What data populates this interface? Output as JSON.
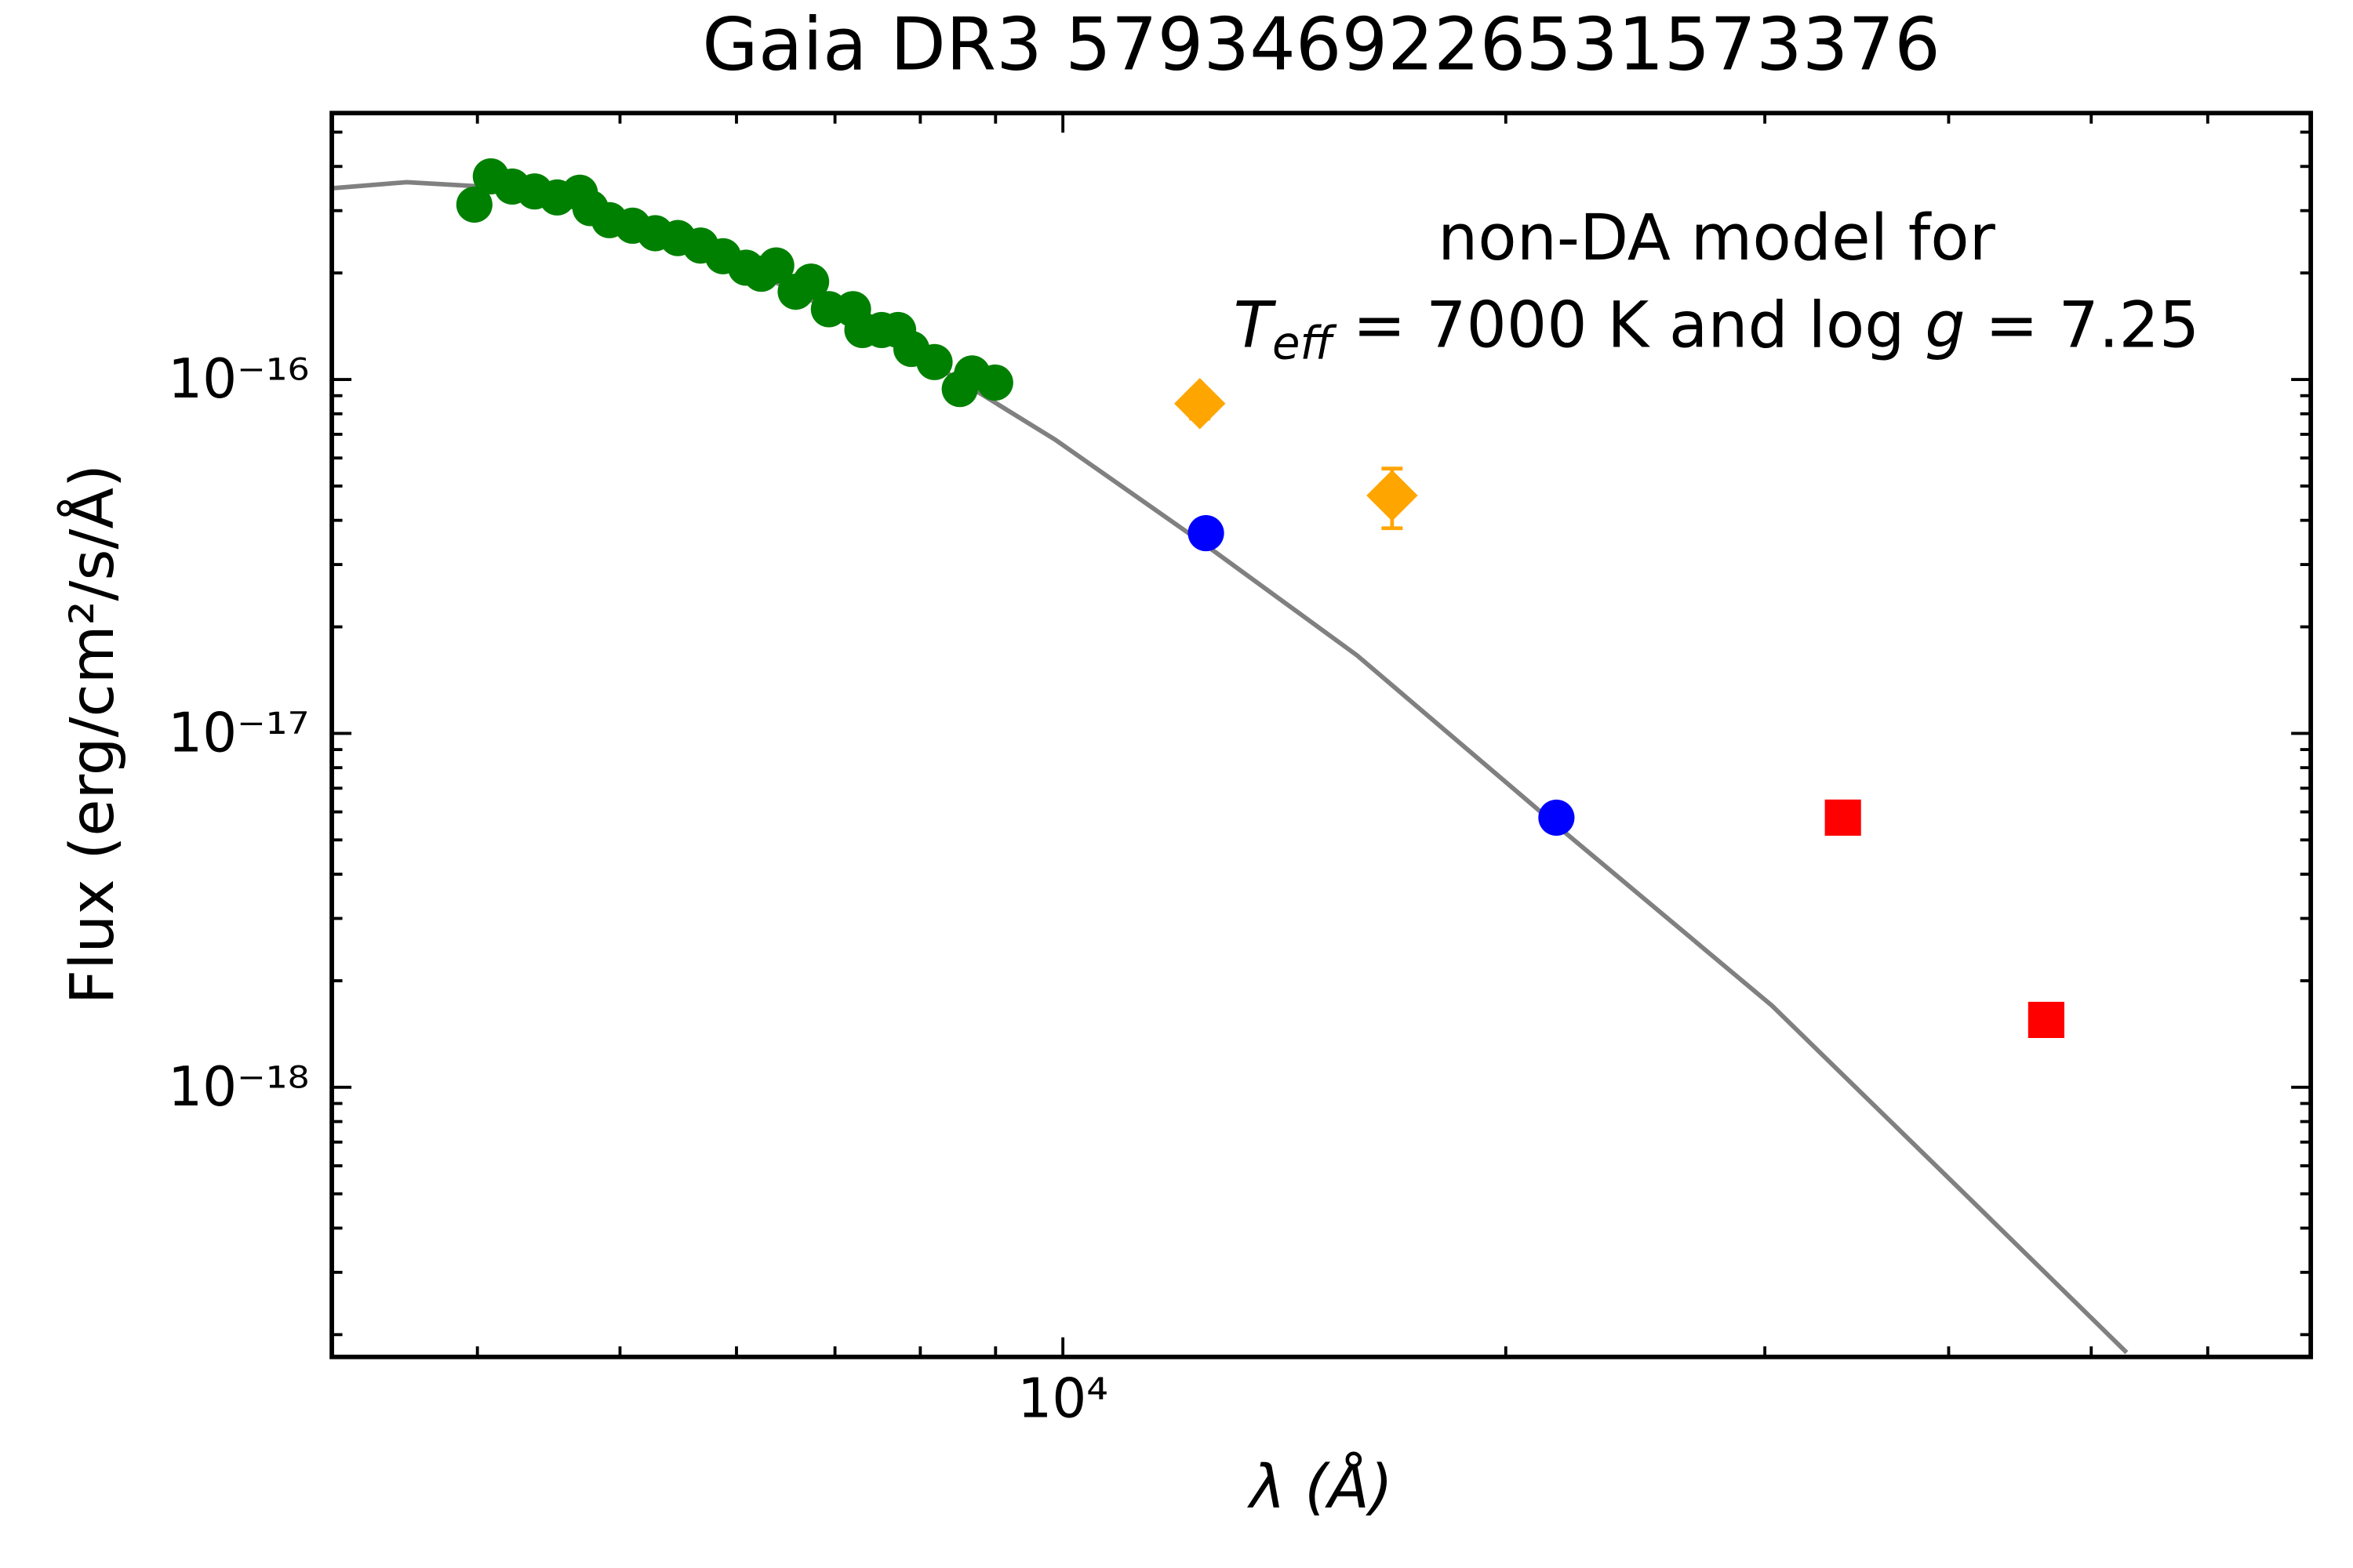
{
  "chart_data": {
    "type": "scatter",
    "title": "Gaia DR3 5793469226531573376",
    "xlabel": "λ (Å)",
    "ylabel": "Flux (erg/cm²/s/Å)",
    "annotation": {
      "line1": "non-DA model for",
      "line2": [
        "T",
        "eff",
        " = 7000 K and log ",
        "g",
        " = 7.25"
      ]
    },
    "xscale": "log",
    "yscale": "log",
    "xlim": [
      3185,
      70500
    ],
    "ylim": [
      1.73e-19,
      5.66e-16
    ],
    "xticks": [
      {
        "value": 10000,
        "label": "10⁴"
      }
    ],
    "xminorticks": [
      4000,
      5000,
      6000,
      7000,
      8000,
      9000,
      20000,
      30000,
      40000,
      50000,
      60000
    ],
    "yticks": [
      {
        "value": 1e-18,
        "label": "10⁻¹⁸"
      },
      {
        "value": 1e-17,
        "label": "10⁻¹⁷"
      },
      {
        "value": 1e-16,
        "label": "10⁻¹⁶"
      }
    ],
    "yminorticks": [
      2e-19,
      3e-19,
      4e-19,
      5e-19,
      6e-19,
      7e-19,
      8e-19,
      9e-19,
      2e-18,
      3e-18,
      4e-18,
      5e-18,
      6e-18,
      7e-18,
      8e-18,
      9e-18,
      2e-17,
      3e-17,
      4e-17,
      5e-17,
      6e-17,
      7e-17,
      8e-17,
      9e-17,
      2e-16,
      3e-16,
      4e-16,
      5e-16
    ],
    "model": {
      "color": "#808080",
      "x": [
        3185,
        3581,
        4027,
        4866,
        6166,
        7800,
        9880,
        12510,
        15850,
        21650,
        30340,
        40740,
        52850
      ],
      "values": [
        3.47e-16,
        3.61e-16,
        3.51e-16,
        2.94e-16,
        2.02e-16,
        1.24e-16,
        6.76e-17,
        3.4e-17,
        1.66e-17,
        5.5e-18,
        1.7e-18,
        5.14e-19,
        1.78e-19
      ]
    },
    "series": [
      {
        "marker": "circle",
        "color": "#008000",
        "x": [
          3981,
          4085,
          4224,
          4375,
          4532,
          4695,
          4774,
          4918,
          5100,
          5284,
          5474,
          5672,
          5875,
          6090,
          6237,
          6385,
          6583,
          6743,
          6934,
          7200,
          7307,
          7530,
          7727,
          7890,
          8180,
          8510,
          8676,
          8994
        ],
        "values": [
          3.12e-16,
          3.75e-16,
          3.51e-16,
          3.4e-16,
          3.27e-16,
          3.37e-16,
          3.05e-16,
          2.82e-16,
          2.72e-16,
          2.59e-16,
          2.51e-16,
          2.39e-16,
          2.23e-16,
          2.07e-16,
          1.99e-16,
          2.1e-16,
          1.77e-16,
          1.89e-16,
          1.58e-16,
          1.58e-16,
          1.38e-16,
          1.38e-16,
          1.38e-16,
          1.22e-16,
          1.12e-16,
          9.4e-17,
          1.04e-16,
          9.8e-17
        ]
      },
      {
        "marker": "circle",
        "color": "#0000ff",
        "x": [
          12510,
          21650
        ],
        "values": [
          3.68e-17,
          5.78e-18
        ]
      },
      {
        "marker": "diamond",
        "color": "#ffa500",
        "x": [
          12390,
          16740
        ],
        "values": [
          8.55e-17,
          4.7e-17
        ],
        "errors": [
          8e-18,
          9e-18
        ]
      },
      {
        "marker": "square",
        "color": "#ff0000",
        "x": [
          33900,
          46600
        ],
        "values": [
          5.78e-18,
          1.55e-18
        ]
      }
    ]
  }
}
